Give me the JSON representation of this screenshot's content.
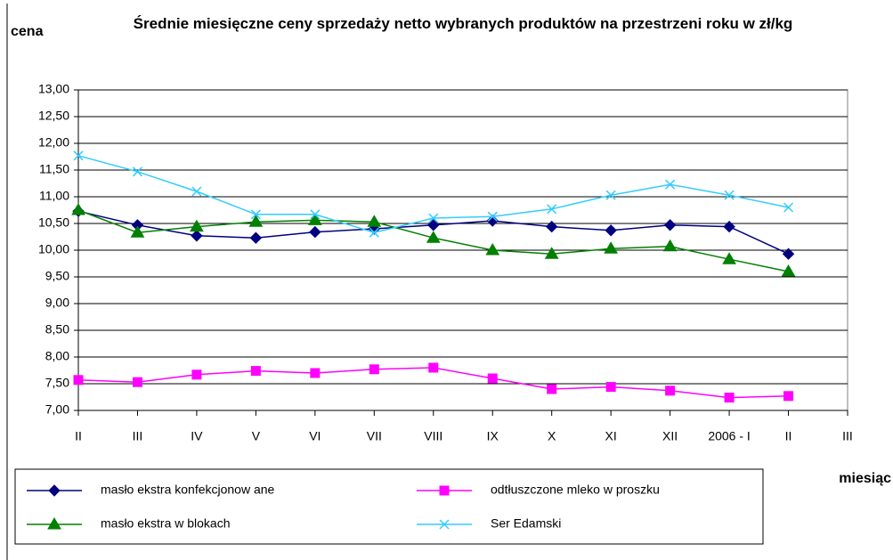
{
  "chart_data": {
    "type": "line",
    "title": "Średnie miesięczne ceny sprzedaży netto  wybranych produktów na przestrzeni roku w zł/kg",
    "y_label": "cena",
    "x_label": "miesiąc",
    "categories": [
      "II",
      "III",
      "IV",
      "V",
      "VI",
      "VII",
      "VIII",
      "IX",
      "X",
      "XI",
      "XII",
      "2006 - I",
      "II",
      "III"
    ],
    "series": [
      {
        "name": "masło ekstra konfekcjonow ane",
        "color": "#000080",
        "marker": "diamond",
        "values": [
          10.73,
          10.47,
          10.27,
          10.23,
          10.34,
          10.4,
          10.47,
          10.55,
          10.44,
          10.37,
          10.47,
          10.44,
          9.93,
          null
        ]
      },
      {
        "name": "odtłuszczone mleko w proszku",
        "color": "#ff00ff",
        "marker": "square",
        "values": [
          7.57,
          7.53,
          7.67,
          7.74,
          7.7,
          7.77,
          7.8,
          7.6,
          7.4,
          7.44,
          7.37,
          7.24,
          7.27,
          null
        ]
      },
      {
        "name": "masło ekstra w  blokach",
        "color": "#008000",
        "marker": "triangle",
        "values": [
          10.75,
          10.33,
          10.44,
          10.53,
          10.56,
          10.53,
          10.23,
          10.0,
          9.93,
          10.03,
          10.07,
          9.83,
          9.6,
          null
        ]
      },
      {
        "name": "Ser Edamski",
        "color": "#33ccff",
        "marker": "x",
        "values": [
          11.77,
          11.47,
          11.1,
          10.67,
          10.67,
          10.33,
          10.6,
          10.63,
          10.77,
          11.03,
          11.23,
          11.03,
          10.8,
          null
        ]
      }
    ],
    "ylim": [
      7,
      13
    ],
    "yticks": [
      {
        "value": 7,
        "label": "7,00"
      },
      {
        "value": 7.5,
        "label": "7,50"
      },
      {
        "value": 8,
        "label": "8,00"
      },
      {
        "value": 8.5,
        "label": "8,50"
      },
      {
        "value": 9,
        "label": "9,00"
      },
      {
        "value": 9.5,
        "label": "9,50"
      },
      {
        "value": 10,
        "label": "10,00"
      },
      {
        "value": 10.5,
        "label": "10,50"
      },
      {
        "value": 11,
        "label": "11,00"
      },
      {
        "value": 11.5,
        "label": "11,50"
      },
      {
        "value": 12,
        "label": "12,00"
      },
      {
        "value": 12.5,
        "label": "12,50"
      },
      {
        "value": 13,
        "label": "13,00"
      }
    ],
    "grid": true,
    "legend": "bottom"
  }
}
